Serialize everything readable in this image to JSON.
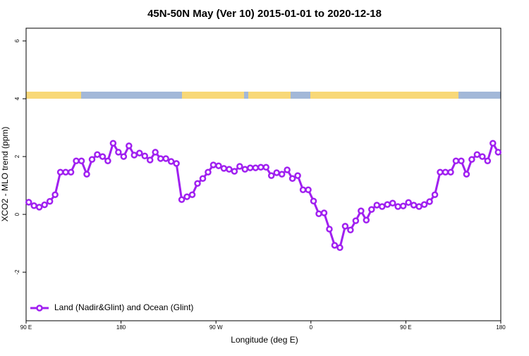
{
  "chart_data": {
    "type": "line",
    "title": "45N-50N May (Ver 10)   2015-01-01 to 2020-12-18",
    "x_label": "Longitude (deg E)",
    "y_label": "XCO2 - MLO trend (ppm)",
    "xlim": [
      90,
      540
    ],
    "ylim": [
      -3.68,
      6.44
    ],
    "xticks": [
      {
        "value": 90,
        "label": "90 E"
      },
      {
        "value": 180,
        "label": "180"
      },
      {
        "value": 270,
        "label": "90 W"
      },
      {
        "value": 360,
        "label": "0"
      },
      {
        "value": 450,
        "label": "90 E"
      },
      {
        "value": 540,
        "label": "180"
      }
    ],
    "yticks": [
      -2,
      0,
      2,
      4,
      6
    ],
    "legend": "bottom-left",
    "x": [
      92.5,
      97.5,
      102.5,
      107.5,
      112.5,
      117.5,
      122.5,
      127.5,
      132.5,
      137.5,
      142.5,
      147.5,
      152.5,
      157.5,
      162.5,
      167.5,
      172.5,
      177.5,
      182.5,
      187.5,
      192.5,
      197.5,
      202.5,
      207.5,
      212.5,
      217.5,
      222.5,
      227.5,
      232.5,
      237.5,
      242.5,
      247.5,
      252.5,
      257.5,
      262.5,
      267.5,
      272.5,
      277.5,
      282.5,
      287.5,
      292.5,
      297.5,
      302.5,
      307.5,
      312.5,
      317.5,
      322.5,
      327.5,
      332.5,
      337.5,
      342.5,
      347.5,
      352.5,
      357.5,
      362.5,
      367.5,
      372.5,
      377.5,
      382.5,
      387.5,
      392.5,
      397.5,
      402.5,
      407.5,
      412.5,
      417.5,
      422.5,
      427.5,
      432.5,
      437.5,
      442.5,
      447.5,
      452.5,
      457.5,
      462.5,
      467.5,
      472.5,
      477.5,
      482.5,
      487.5,
      492.5,
      497.5,
      502.5,
      507.5,
      512.5,
      517.5,
      522.5,
      527.5,
      532.5,
      537.5
    ],
    "series": [
      {
        "name": "Land (Nadir&Glint) and Ocean (Glint)",
        "color": "#a020f0",
        "values": [
          0.42,
          0.3,
          0.25,
          0.33,
          0.45,
          0.68,
          1.46,
          1.46,
          1.46,
          1.85,
          1.85,
          1.39,
          1.9,
          2.07,
          2.0,
          1.85,
          2.46,
          2.15,
          2.0,
          2.37,
          2.05,
          2.12,
          2.02,
          1.88,
          2.15,
          1.93,
          1.93,
          1.83,
          1.76,
          0.51,
          0.61,
          0.68,
          1.07,
          1.24,
          1.46,
          1.71,
          1.68,
          1.59,
          1.56,
          1.49,
          1.66,
          1.56,
          1.61,
          1.61,
          1.63,
          1.63,
          1.34,
          1.44,
          1.39,
          1.54,
          1.24,
          1.34,
          0.85,
          0.85,
          0.46,
          0.02,
          0.05,
          -0.51,
          -1.07,
          -1.15,
          -0.41,
          -0.54,
          -0.22,
          0.12,
          -0.2,
          0.17,
          0.32,
          0.27,
          0.34,
          0.39,
          0.27,
          0.29,
          0.41,
          0.32,
          0.27,
          0.34,
          0.44,
          0.68,
          1.46,
          1.46,
          1.46,
          1.85,
          1.85,
          1.39,
          1.9,
          2.07,
          2.0,
          1.85,
          2.46,
          2.15
        ]
      }
    ]
  }
}
